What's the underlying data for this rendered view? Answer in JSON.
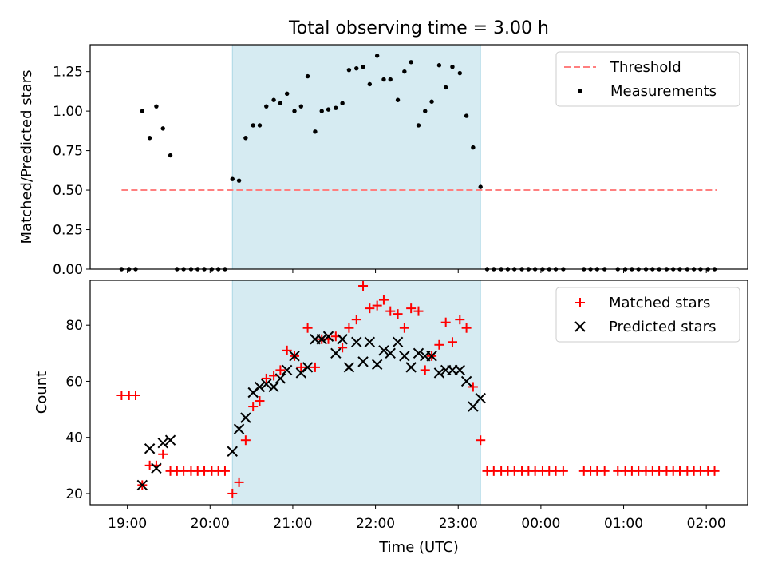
{
  "chart_data": {
    "title": "Total observing time = 3.00 h",
    "xlabel": "Time (UTC)",
    "x_unit": "hours (UTC clock; values above 24 are after midnight)",
    "xlim": [
      18.55,
      26.5
    ],
    "x_tick_values": [
      19,
      20,
      21,
      22,
      23,
      24,
      25,
      26
    ],
    "x_tick_labels": [
      "19:00",
      "20:00",
      "21:00",
      "22:00",
      "23:00",
      "00:00",
      "01:00",
      "02:00"
    ],
    "shaded_interval": [
      20.27,
      23.27
    ],
    "colors": {
      "shade": "#add8e6",
      "threshold": "#ff7f7f",
      "matched": "#ff0000",
      "predicted": "#000000"
    },
    "panels": [
      {
        "type": "scatter",
        "ylabel": "Matched/Predicted stars",
        "ylim": [
          0,
          1.42
        ],
        "y_ticks": [
          "0.00",
          "0.25",
          "0.50",
          "0.75",
          "1.00",
          "1.25"
        ],
        "legend": {
          "placement": "upper right",
          "entries": [
            "Threshold",
            "Measurements"
          ]
        },
        "threshold": {
          "name": "Threshold",
          "y": 0.5,
          "x_range": [
            18.93,
            26.13
          ]
        },
        "series": [
          {
            "name": "Measurements",
            "points": [
              [
                18.93,
                0
              ],
              [
                19.02,
                0
              ],
              [
                19.1,
                0
              ],
              [
                19.18,
                1.0
              ],
              [
                19.27,
                0.83
              ],
              [
                19.35,
                1.03
              ],
              [
                19.43,
                0.89
              ],
              [
                19.52,
                0.72
              ],
              [
                19.6,
                0
              ],
              [
                19.68,
                0
              ],
              [
                19.77,
                0
              ],
              [
                19.85,
                0
              ],
              [
                19.93,
                0
              ],
              [
                20.02,
                0
              ],
              [
                20.1,
                0
              ],
              [
                20.18,
                0
              ],
              [
                20.27,
                0.57
              ],
              [
                20.35,
                0.56
              ],
              [
                20.43,
                0.83
              ],
              [
                20.52,
                0.91
              ],
              [
                20.6,
                0.91
              ],
              [
                20.68,
                1.03
              ],
              [
                20.77,
                1.07
              ],
              [
                20.85,
                1.05
              ],
              [
                20.93,
                1.11
              ],
              [
                21.02,
                1.0
              ],
              [
                21.1,
                1.03
              ],
              [
                21.18,
                1.22
              ],
              [
                21.27,
                0.87
              ],
              [
                21.35,
                1.0
              ],
              [
                21.43,
                1.01
              ],
              [
                21.52,
                1.02
              ],
              [
                21.6,
                1.05
              ],
              [
                21.68,
                1.26
              ],
              [
                21.77,
                1.27
              ],
              [
                21.85,
                1.28
              ],
              [
                21.93,
                1.17
              ],
              [
                22.02,
                1.35
              ],
              [
                22.1,
                1.2
              ],
              [
                22.18,
                1.2
              ],
              [
                22.27,
                1.07
              ],
              [
                22.35,
                1.25
              ],
              [
                22.43,
                1.31
              ],
              [
                22.52,
                0.91
              ],
              [
                22.6,
                1.0
              ],
              [
                22.68,
                1.06
              ],
              [
                22.77,
                1.29
              ],
              [
                22.85,
                1.15
              ],
              [
                22.93,
                1.28
              ],
              [
                23.02,
                1.24
              ],
              [
                23.1,
                0.97
              ],
              [
                23.18,
                0.77
              ],
              [
                23.27,
                0.52
              ],
              [
                23.35,
                0
              ],
              [
                23.43,
                0
              ],
              [
                23.52,
                0
              ],
              [
                23.6,
                0
              ],
              [
                23.68,
                0
              ],
              [
                23.77,
                0
              ],
              [
                23.85,
                0
              ],
              [
                23.93,
                0
              ],
              [
                24.02,
                0
              ],
              [
                24.1,
                0
              ],
              [
                24.18,
                0
              ],
              [
                24.27,
                0
              ],
              [
                24.52,
                0
              ],
              [
                24.6,
                0
              ],
              [
                24.68,
                0
              ],
              [
                24.77,
                0
              ],
              [
                24.93,
                0
              ],
              [
                25.02,
                0
              ],
              [
                25.1,
                0
              ],
              [
                25.18,
                0
              ],
              [
                25.27,
                0
              ],
              [
                25.35,
                0
              ],
              [
                25.43,
                0
              ],
              [
                25.52,
                0
              ],
              [
                25.6,
                0
              ],
              [
                25.68,
                0
              ],
              [
                25.77,
                0
              ],
              [
                25.85,
                0
              ],
              [
                25.93,
                0
              ],
              [
                26.02,
                0
              ],
              [
                26.1,
                0
              ]
            ]
          }
        ]
      },
      {
        "type": "scatter",
        "ylabel": "Count",
        "ylim": [
          16,
          96
        ],
        "y_ticks": [
          "20",
          "40",
          "60",
          "80"
        ],
        "legend": {
          "placement": "upper right",
          "entries": [
            "Matched stars",
            "Predicted stars"
          ]
        },
        "series": [
          {
            "name": "Matched stars",
            "marker": "+",
            "points": [
              [
                18.93,
                55
              ],
              [
                19.02,
                55
              ],
              [
                19.1,
                55
              ],
              [
                19.18,
                23
              ],
              [
                19.27,
                30
              ],
              [
                19.35,
                30
              ],
              [
                19.43,
                34
              ],
              [
                19.52,
                28
              ],
              [
                19.6,
                28
              ],
              [
                19.68,
                28
              ],
              [
                19.77,
                28
              ],
              [
                19.85,
                28
              ],
              [
                19.93,
                28
              ],
              [
                20.02,
                28
              ],
              [
                20.1,
                28
              ],
              [
                20.18,
                28
              ],
              [
                20.27,
                20
              ],
              [
                20.35,
                24
              ],
              [
                20.43,
                39
              ],
              [
                20.52,
                51
              ],
              [
                20.6,
                53
              ],
              [
                20.68,
                61
              ],
              [
                20.77,
                62
              ],
              [
                20.85,
                64
              ],
              [
                20.93,
                71
              ],
              [
                21.02,
                69
              ],
              [
                21.1,
                65
              ],
              [
                21.18,
                79
              ],
              [
                21.27,
                65
              ],
              [
                21.35,
                75
              ],
              [
                21.43,
                75
              ],
              [
                21.52,
                76
              ],
              [
                21.6,
                72
              ],
              [
                21.68,
                79
              ],
              [
                21.77,
                82
              ],
              [
                21.85,
                94
              ],
              [
                21.93,
                86
              ],
              [
                22.02,
                87
              ],
              [
                22.1,
                89
              ],
              [
                22.18,
                85
              ],
              [
                22.27,
                84
              ],
              [
                22.35,
                79
              ],
              [
                22.43,
                86
              ],
              [
                22.52,
                85
              ],
              [
                22.6,
                64
              ],
              [
                22.68,
                69
              ],
              [
                22.77,
                73
              ],
              [
                22.85,
                81
              ],
              [
                22.93,
                74
              ],
              [
                23.02,
                82
              ],
              [
                23.1,
                79
              ],
              [
                23.18,
                58
              ],
              [
                23.27,
                39
              ],
              [
                23.35,
                28
              ],
              [
                23.43,
                28
              ],
              [
                23.52,
                28
              ],
              [
                23.6,
                28
              ],
              [
                23.68,
                28
              ],
              [
                23.77,
                28
              ],
              [
                23.85,
                28
              ],
              [
                23.93,
                28
              ],
              [
                24.02,
                28
              ],
              [
                24.1,
                28
              ],
              [
                24.18,
                28
              ],
              [
                24.27,
                28
              ],
              [
                24.52,
                28
              ],
              [
                24.6,
                28
              ],
              [
                24.68,
                28
              ],
              [
                24.77,
                28
              ],
              [
                24.93,
                28
              ],
              [
                25.02,
                28
              ],
              [
                25.1,
                28
              ],
              [
                25.18,
                28
              ],
              [
                25.27,
                28
              ],
              [
                25.35,
                28
              ],
              [
                25.43,
                28
              ],
              [
                25.52,
                28
              ],
              [
                25.6,
                28
              ],
              [
                25.68,
                28
              ],
              [
                25.77,
                28
              ],
              [
                25.85,
                28
              ],
              [
                25.93,
                28
              ],
              [
                26.02,
                28
              ],
              [
                26.1,
                28
              ]
            ]
          },
          {
            "name": "Predicted stars",
            "marker": "x",
            "points": [
              [
                19.18,
                23
              ],
              [
                19.27,
                36
              ],
              [
                19.35,
                29
              ],
              [
                19.43,
                38
              ],
              [
                19.52,
                39
              ],
              [
                20.27,
                35
              ],
              [
                20.35,
                43
              ],
              [
                20.43,
                47
              ],
              [
                20.52,
                56
              ],
              [
                20.6,
                58
              ],
              [
                20.68,
                59
              ],
              [
                20.77,
                58
              ],
              [
                20.85,
                61
              ],
              [
                20.93,
                64
              ],
              [
                21.02,
                69
              ],
              [
                21.1,
                63
              ],
              [
                21.18,
                65
              ],
              [
                21.27,
                75
              ],
              [
                21.35,
                75
              ],
              [
                21.43,
                76
              ],
              [
                21.52,
                70
              ],
              [
                21.6,
                75
              ],
              [
                21.68,
                65
              ],
              [
                21.77,
                74
              ],
              [
                21.85,
                67
              ],
              [
                21.93,
                74
              ],
              [
                22.02,
                66
              ],
              [
                22.1,
                71
              ],
              [
                22.18,
                70
              ],
              [
                22.27,
                74
              ],
              [
                22.35,
                69
              ],
              [
                22.43,
                65
              ],
              [
                22.52,
                70
              ],
              [
                22.6,
                69
              ],
              [
                22.68,
                69
              ],
              [
                22.77,
                63
              ],
              [
                22.85,
                64
              ],
              [
                22.93,
                64
              ],
              [
                23.02,
                64
              ],
              [
                23.1,
                60
              ],
              [
                23.18,
                51
              ],
              [
                23.27,
                54
              ]
            ]
          }
        ]
      }
    ]
  }
}
